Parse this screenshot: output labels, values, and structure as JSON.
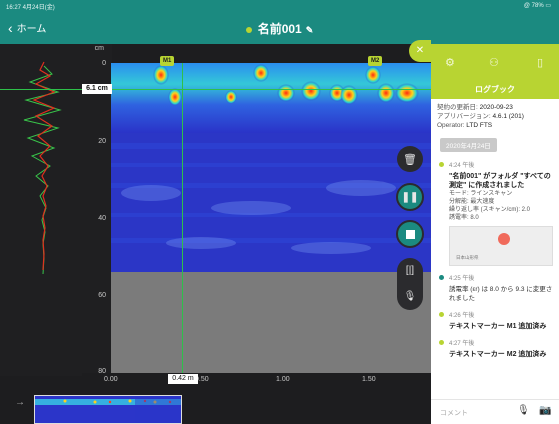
{
  "status": {
    "time": "16:27  4月24日(金)",
    "battery": "@ 78% ▭"
  },
  "nav": {
    "back_label": "ホーム",
    "title": "名前001"
  },
  "ruler": {
    "unit": "cm",
    "ticks": [
      "0",
      "20",
      "40",
      "60",
      "80"
    ]
  },
  "cursor": {
    "depth": "6.1 cm",
    "position": "0.42 m"
  },
  "markers": [
    "M1",
    "M2"
  ],
  "xaxis": {
    "ticks": [
      "0.00",
      "0.50",
      "1.00",
      "1.50"
    ]
  },
  "logbook": {
    "title": "ログブック",
    "info": [
      {
        "label": "契約の更新日: ",
        "value": "2020-09-23"
      },
      {
        "label": "アプリバージョン: ",
        "value": "4.6.1 (201)"
      },
      {
        "label": "Operator: ",
        "value": "LTD FTS"
      }
    ],
    "date": "2020年4月24日",
    "entries": [
      {
        "time": "4:24 午後",
        "title": "\"名前001\" がフォルダ \"すべての測定\" に作成されました",
        "meta": [
          "モード: ラインスキャン",
          "分解能: 最大速度",
          "繰り返し率 (スキャン/cm): 2.0",
          "誘電率: 8.0"
        ],
        "map_label": "日本山形県",
        "dot": "green"
      },
      {
        "time": "4:25 午後",
        "text": "誘電率 (εr) は 8.0 から 9.3 に変更されました",
        "dot": "teal"
      },
      {
        "time": "4:26 午後",
        "title": "テキストマーカー M1 追加済み",
        "dot": "green"
      },
      {
        "time": "4:27 午後",
        "title": "テキストマーカー M2 追加済み",
        "dot": "green"
      }
    ],
    "comment_placeholder": "コメント"
  },
  "colors": {
    "teal": "#1b8a80",
    "lime": "#b8d432",
    "trace_red": "#e0301e",
    "trace_green": "#39c44a"
  },
  "icons": [
    "chevron-left-icon",
    "pencil-icon",
    "trash-icon",
    "pause-icon",
    "stop-icon",
    "split-icon",
    "mic-icon",
    "close-icon",
    "settings-icon",
    "probe-icon",
    "panel-icon",
    "camera-icon",
    "map-pin-icon"
  ]
}
